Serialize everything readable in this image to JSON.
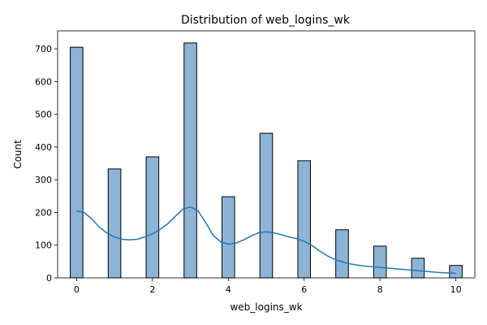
{
  "chart_data": {
    "type": "bar",
    "title": "Distribution of web_logins_wk",
    "xlabel": "web_logins_wk",
    "ylabel": "Count",
    "xlim": [
      -0.5,
      10.5
    ],
    "ylim": [
      0,
      755
    ],
    "xticks": [
      0,
      2,
      4,
      6,
      8,
      10
    ],
    "yticks": [
      0,
      100,
      200,
      300,
      400,
      500,
      600,
      700
    ],
    "bar_width": 0.333,
    "categories": [
      0,
      1,
      2,
      3,
      4,
      5,
      6,
      7,
      8,
      9,
      10
    ],
    "values": [
      705,
      333,
      370,
      718,
      248,
      442,
      358,
      147,
      97,
      60,
      38
    ],
    "kde": {
      "x": [
        0,
        0.2,
        0.4,
        0.6,
        0.8,
        1.0,
        1.2,
        1.4,
        1.6,
        1.8,
        2.0,
        2.2,
        2.4,
        2.6,
        2.8,
        3.0,
        3.2,
        3.4,
        3.6,
        3.8,
        4.0,
        4.2,
        4.4,
        4.6,
        4.8,
        5.0,
        5.2,
        5.4,
        5.6,
        5.8,
        6.0,
        6.2,
        6.4,
        6.6,
        6.8,
        7.0,
        7.2,
        7.4,
        7.6,
        7.8,
        8.0,
        8.2,
        8.4,
        8.6,
        8.8,
        9.0,
        9.2,
        9.4,
        9.6,
        9.8,
        10.0
      ],
      "y": [
        205,
        200,
        180,
        155,
        137,
        125,
        118,
        116,
        118,
        125,
        135,
        148,
        165,
        188,
        210,
        217,
        205,
        170,
        130,
        110,
        103,
        106,
        116,
        128,
        138,
        141,
        138,
        132,
        125,
        120,
        112,
        100,
        83,
        68,
        57,
        49,
        43,
        39,
        36,
        34,
        32,
        30,
        28,
        26,
        24,
        22,
        20,
        18,
        16,
        15,
        14
      ]
    },
    "colors": {
      "bar_fill": "#8db4d6",
      "bar_edge": "#000000",
      "kde_line": "#1f77b4"
    },
    "grid": false,
    "legend": "none"
  }
}
